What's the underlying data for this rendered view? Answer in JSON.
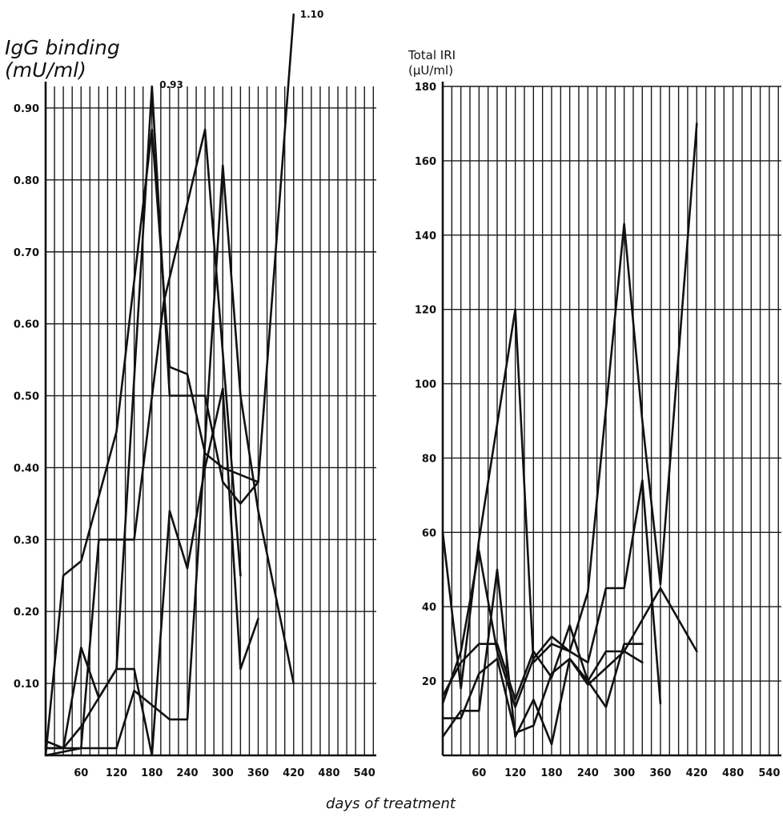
{
  "figure": {
    "xlabel": "days of treatment"
  },
  "chart_data": [
    {
      "type": "line",
      "ylabel_line1": "IgG binding",
      "ylabel_line2": "(mU/ml)",
      "xlim": [
        0,
        560
      ],
      "ylim": [
        0,
        0.93
      ],
      "x_ticks": [
        60,
        120,
        180,
        240,
        300,
        360,
        420,
        480,
        540
      ],
      "x_tick_labels": [
        "60",
        "120",
        "180",
        "240",
        "300",
        "360",
        "420",
        "480",
        "540"
      ],
      "y_ticks": [
        0.1,
        0.2,
        0.3,
        0.4,
        0.5,
        0.6,
        0.7,
        0.8,
        0.9
      ],
      "y_tick_labels": [
        "0.10",
        "0.20",
        "0.30",
        "0.40",
        "0.50",
        "0.60",
        "0.70",
        "0.80",
        "0.90"
      ],
      "grid": true,
      "annotations": [
        {
          "text": "0.93",
          "x": 182,
          "y": 0.93
        },
        {
          "text": "1.10",
          "x": 420,
          "y": 1.1
        }
      ],
      "series": [
        {
          "x": [
            0,
            30,
            60,
            120,
            180,
            210,
            240,
            270,
            300,
            330,
            360,
            420
          ],
          "y": [
            0.02,
            0.01,
            0.04,
            0.12,
            0.93,
            0.5,
            0.5,
            0.5,
            0.38,
            0.35,
            0.38,
            1.1
          ]
        },
        {
          "x": [
            0,
            30,
            60,
            120,
            180,
            210,
            240,
            270,
            300,
            360
          ],
          "y": [
            0,
            0.25,
            0.27,
            0.45,
            0.87,
            0.54,
            0.53,
            0.42,
            0.4,
            0.38
          ]
        },
        {
          "x": [
            0,
            60,
            90,
            120,
            150,
            200,
            270,
            330
          ],
          "y": [
            0,
            0.01,
            0.3,
            0.3,
            0.3,
            0.63,
            0.87,
            0.25
          ]
        },
        {
          "x": [
            0,
            30,
            60,
            90,
            120,
            150,
            180,
            210,
            240,
            270,
            300,
            330,
            360
          ],
          "y": [
            0.01,
            0.01,
            0.15,
            0.08,
            0.12,
            0.12,
            0,
            0.34,
            0.26,
            0.4,
            0.51,
            0.12,
            0.19
          ]
        },
        {
          "x": [
            0,
            30,
            90,
            120,
            150,
            180,
            210,
            240,
            300,
            330,
            360,
            420
          ],
          "y": [
            0.01,
            0.01,
            0.01,
            0.01,
            0.09,
            0.07,
            0.05,
            0.05,
            0.82,
            0.5,
            0.34,
            0.1
          ]
        }
      ]
    },
    {
      "type": "line",
      "ylabel_line1": "Total IRI",
      "ylabel_line2": "(μU/ml)",
      "xlim": [
        0,
        560
      ],
      "ylim": [
        0,
        180
      ],
      "x_ticks": [
        60,
        120,
        180,
        240,
        300,
        360,
        420,
        480,
        540
      ],
      "x_tick_labels": [
        "60",
        "120",
        "180",
        "240",
        "300",
        "360",
        "420",
        "480",
        "540"
      ],
      "y_ticks": [
        20,
        40,
        60,
        80,
        100,
        120,
        140,
        160,
        180
      ],
      "y_tick_labels": [
        "20",
        "40",
        "60",
        "80",
        "100",
        "120",
        "140",
        "160",
        "180"
      ],
      "grid": true,
      "series": [
        {
          "x": [
            0,
            30,
            60,
            120,
            150,
            180,
            210,
            240,
            300,
            330,
            360,
            420
          ],
          "y": [
            60,
            18,
            58,
            120,
            25,
            30,
            28,
            44,
            143,
            90,
            46,
            170
          ]
        },
        {
          "x": [
            0,
            30,
            60,
            90,
            120,
            150,
            180,
            210,
            240,
            270,
            300,
            330,
            360
          ],
          "y": [
            14,
            28,
            55,
            28,
            13,
            26,
            32,
            28,
            25,
            45,
            45,
            74,
            14
          ]
        },
        {
          "x": [
            0,
            30,
            60,
            90,
            120,
            150,
            180,
            210,
            240,
            270,
            300,
            330
          ],
          "y": [
            10,
            10,
            22,
            26,
            6,
            8,
            22,
            26,
            20,
            13,
            30,
            30
          ]
        },
        {
          "x": [
            0,
            30,
            60,
            90,
            120,
            150,
            180,
            210,
            240,
            300,
            330
          ],
          "y": [
            5,
            12,
            12,
            50,
            5,
            15,
            3,
            26,
            19,
            28,
            25
          ]
        },
        {
          "x": [
            0,
            30,
            60,
            90,
            120,
            150,
            180,
            210,
            240,
            270,
            300,
            360,
            420
          ],
          "y": [
            16,
            25,
            30,
            30,
            15,
            28,
            21,
            35,
            20,
            28,
            28,
            45,
            28
          ]
        }
      ]
    }
  ]
}
